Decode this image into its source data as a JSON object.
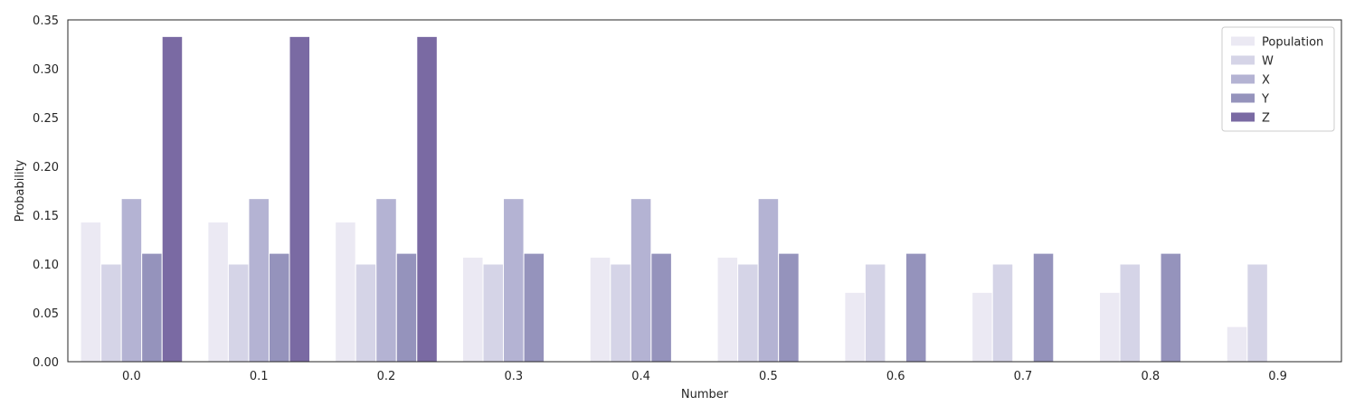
{
  "chart_data": {
    "type": "bar",
    "title": "",
    "xlabel": "Number",
    "ylabel": "Probability",
    "categories": [
      "0.0",
      "0.1",
      "0.2",
      "0.3",
      "0.4",
      "0.5",
      "0.6",
      "0.7",
      "0.8",
      "0.9"
    ],
    "ylim": [
      0,
      0.35
    ],
    "yticks": [
      "0.00",
      "0.05",
      "0.10",
      "0.15",
      "0.20",
      "0.25",
      "0.30",
      "0.35"
    ],
    "grid": false,
    "legend_position": "top-right",
    "series": [
      {
        "name": "Population",
        "color": "#ebe9f3",
        "values": [
          0.143,
          0.143,
          0.143,
          0.107,
          0.107,
          0.107,
          0.071,
          0.071,
          0.071,
          0.036
        ]
      },
      {
        "name": "W",
        "color": "#d5d4e7",
        "values": [
          0.1,
          0.1,
          0.1,
          0.1,
          0.1,
          0.1,
          0.1,
          0.1,
          0.1,
          0.1
        ]
      },
      {
        "name": "X",
        "color": "#b4b3d3",
        "values": [
          0.167,
          0.167,
          0.167,
          0.167,
          0.167,
          0.167,
          0,
          0,
          0,
          0
        ]
      },
      {
        "name": "Y",
        "color": "#9593bc",
        "values": [
          0.111,
          0.111,
          0.111,
          0.111,
          0.111,
          0.111,
          0.111,
          0.111,
          0.111,
          0
        ]
      },
      {
        "name": "Z",
        "color": "#7a6aa3",
        "values": [
          0.333,
          0.333,
          0.333,
          0,
          0,
          0,
          0,
          0,
          0,
          0
        ]
      }
    ]
  }
}
